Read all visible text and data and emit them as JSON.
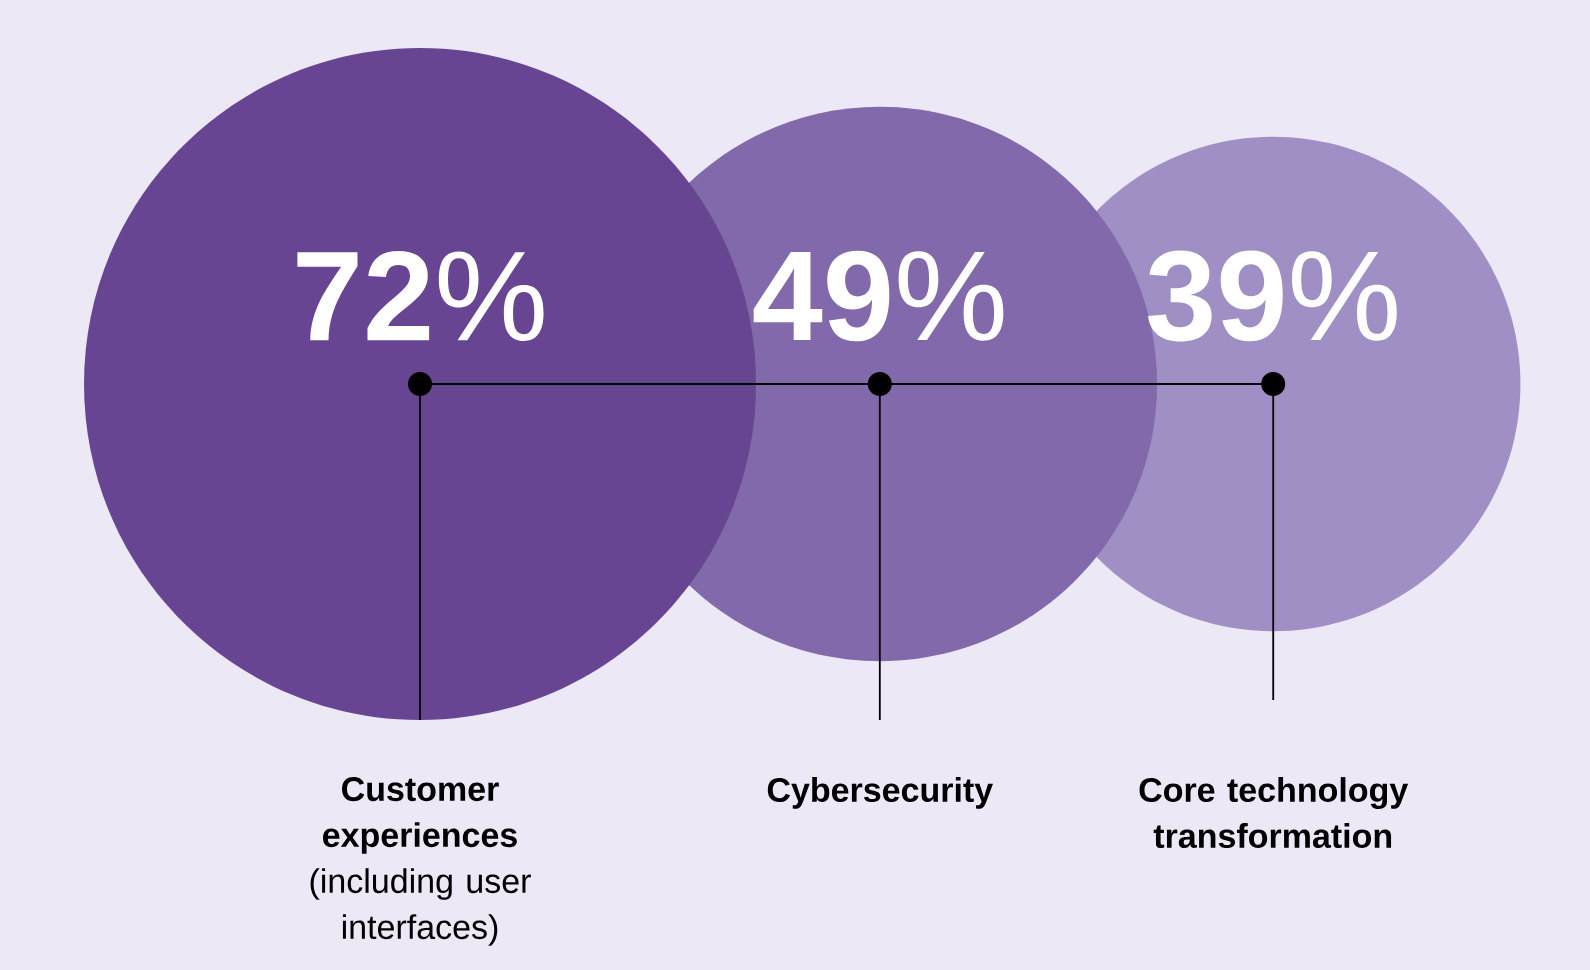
{
  "chart_data": {
    "type": "other",
    "categories": [
      "**Customer experiences** (including user interfaces)",
      "**Cybersecurity**",
      "**Core technology transformation**"
    ],
    "values": [
      72,
      49,
      39
    ],
    "value_labels": [
      "**72**%",
      "**49**%",
      "**39**%"
    ],
    "colors": [
      "#674593",
      "#8169ab",
      "#a08fc4"
    ]
  }
}
